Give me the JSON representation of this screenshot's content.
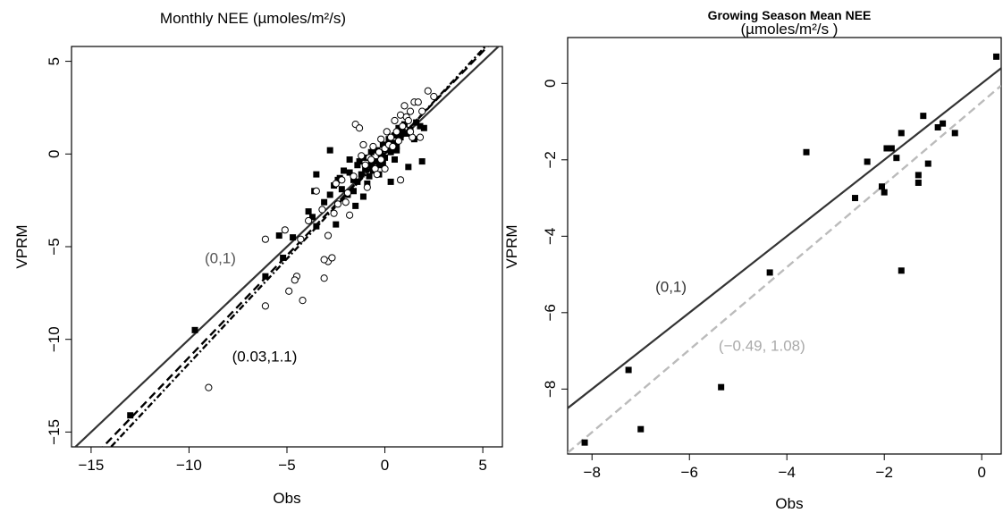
{
  "chart_data": [
    {
      "type": "scatter",
      "title": "Monthly NEE  (µmoles/m²/s)",
      "xlabel": "Obs",
      "ylabel": "VPRM",
      "xlim": [
        -16,
        6
      ],
      "ylim": [
        -15.8,
        5.8
      ],
      "xticks": [
        -15,
        -10,
        -5,
        0,
        5
      ],
      "yticks": [
        -15,
        -10,
        -5,
        0,
        5
      ],
      "xtick_labels": [
        "−15",
        "−10",
        "−5",
        "0",
        "5"
      ],
      "ytick_labels": [
        "−15",
        "−10",
        "−5",
        "0",
        "5"
      ],
      "grid": false,
      "legend": "none",
      "lines": [
        {
          "label": "(0,1)",
          "intercept": 0,
          "slope": 1,
          "style": "solid",
          "color": "#333333"
        },
        {
          "label": "(0.03,1.1)",
          "intercept": 0.03,
          "slope": 1.1,
          "style": "dashed",
          "color": "#000000"
        },
        {
          "label": "",
          "intercept": 0.0,
          "slope": 1.13,
          "style": "dotdash",
          "color": "#000000"
        }
      ],
      "annotations": [
        {
          "text": "(0,1)",
          "x": -9.2,
          "y": -5.9,
          "color": "#555555"
        },
        {
          "text": "(0.03,1.1)",
          "x": -7.8,
          "y": -11.2,
          "color": "#000000"
        }
      ],
      "series": [
        {
          "marker": "filled-square",
          "points": [
            [
              -13,
              -14.1
            ],
            [
              -9.7,
              -9.5
            ],
            [
              -6.1,
              -6.6
            ],
            [
              -5.4,
              -4.4
            ],
            [
              -5.2,
              -5.6
            ],
            [
              -4.7,
              -4.5
            ],
            [
              -3.5,
              -3.9
            ],
            [
              -3.9,
              -3.1
            ],
            [
              -3.5,
              -1.1
            ],
            [
              -3.6,
              -2
            ],
            [
              -3.1,
              -2.6
            ],
            [
              -2.8,
              0.2
            ],
            [
              -2.8,
              -2.2
            ],
            [
              -2.6,
              -1.7
            ],
            [
              -2.5,
              -3.8
            ],
            [
              -2.4,
              -1.4
            ],
            [
              -2.2,
              -1.9
            ],
            [
              -2.1,
              -0.9
            ],
            [
              -1.9,
              -2.2
            ],
            [
              -1.8,
              -0.3
            ],
            [
              -1.8,
              -1
            ],
            [
              -1.6,
              -2
            ],
            [
              -1.5,
              -2.8
            ],
            [
              -1.4,
              -1.5
            ],
            [
              -1.4,
              -0.6
            ],
            [
              -1.3,
              -0.4
            ],
            [
              -1.2,
              -1.1
            ],
            [
              -1.1,
              -2.3
            ],
            [
              -1,
              -0.8
            ],
            [
              -1,
              -0.2
            ],
            [
              -0.9,
              -1.6
            ],
            [
              -0.8,
              -1.2
            ],
            [
              -0.7,
              -0.6
            ],
            [
              -0.7,
              0.1
            ],
            [
              -0.6,
              -0.9
            ],
            [
              -0.5,
              -0.4
            ],
            [
              -0.4,
              0.2
            ],
            [
              -0.3,
              -0.6
            ],
            [
              -0.2,
              0
            ],
            [
              -0.1,
              0.5
            ],
            [
              0,
              -0.2
            ],
            [
              0.1,
              0.3
            ],
            [
              0.2,
              0.8
            ],
            [
              0.3,
              0.1
            ],
            [
              0.4,
              0.6
            ],
            [
              0.5,
              1
            ],
            [
              0.6,
              0.4
            ],
            [
              0.7,
              1.4
            ],
            [
              0.8,
              0.9
            ],
            [
              0.9,
              1.2
            ],
            [
              1,
              1.6
            ],
            [
              1.1,
              1.1
            ],
            [
              1.3,
              1.3
            ],
            [
              1.5,
              0.8
            ],
            [
              1.6,
              1.7
            ],
            [
              1.8,
              1.5
            ],
            [
              1.9,
              -0.4
            ],
            [
              2,
              1.4
            ],
            [
              0.3,
              -1.5
            ],
            [
              1.2,
              -0.7
            ],
            [
              0.5,
              -0.3
            ],
            [
              -0.3,
              -1.1
            ],
            [
              -2.3,
              -1.3
            ],
            [
              -1.6,
              -1.4
            ],
            [
              -0.1,
              -0.5
            ],
            [
              0.6,
              0.2
            ],
            [
              -3.7,
              -3.4
            ]
          ]
        },
        {
          "marker": "open-circle",
          "points": [
            [
              -9,
              -12.6
            ],
            [
              -6.1,
              -8.2
            ],
            [
              -4.2,
              -7.9
            ],
            [
              -4.9,
              -7.4
            ],
            [
              -4.5,
              -6.6
            ],
            [
              -4.6,
              -6.8
            ],
            [
              -3.1,
              -6.7
            ],
            [
              -2.9,
              -5.8
            ],
            [
              -2.7,
              -5.6
            ],
            [
              -3.1,
              -5.7
            ],
            [
              -6.1,
              -4.6
            ],
            [
              -5.1,
              -4.1
            ],
            [
              -4.3,
              -4.6
            ],
            [
              -3.9,
              -3.6
            ],
            [
              -3.5,
              -2
            ],
            [
              -3.2,
              -3
            ],
            [
              -2.9,
              -4.4
            ],
            [
              -2.6,
              -3.2
            ],
            [
              -2.4,
              -2.7
            ],
            [
              -2.2,
              -1.4
            ],
            [
              -2,
              -2.6
            ],
            [
              -1.8,
              -3.3
            ],
            [
              -1.6,
              -1.2
            ],
            [
              -1.5,
              1.6
            ],
            [
              -1.3,
              1.4
            ],
            [
              -1.2,
              -0.1
            ],
            [
              -1,
              -0.6
            ],
            [
              -0.9,
              -1.8
            ],
            [
              -0.8,
              -0.2
            ],
            [
              -0.6,
              0.4
            ],
            [
              -0.5,
              -0.8
            ],
            [
              -0.3,
              0.1
            ],
            [
              -0.2,
              0.8
            ],
            [
              0,
              0.3
            ],
            [
              0.1,
              1.2
            ],
            [
              0.2,
              0.5
            ],
            [
              0.3,
              0.9
            ],
            [
              0.5,
              1.8
            ],
            [
              0.6,
              1.2
            ],
            [
              0.7,
              0.7
            ],
            [
              0.8,
              2.1
            ],
            [
              0.9,
              1.5
            ],
            [
              1,
              2.6
            ],
            [
              1.1,
              2
            ],
            [
              1.2,
              1.8
            ],
            [
              1.3,
              2.3
            ],
            [
              1.4,
              0.9
            ],
            [
              1.5,
              2.8
            ],
            [
              1.7,
              2.8
            ],
            [
              1.9,
              2.3
            ],
            [
              2.2,
              3.4
            ],
            [
              2.5,
              3.1
            ],
            [
              0.8,
              -1.4
            ],
            [
              0,
              -0.8
            ],
            [
              -0.4,
              -1.1
            ],
            [
              -1.1,
              0.5
            ],
            [
              0.4,
              0.4
            ],
            [
              -0.7,
              -0.3
            ],
            [
              1.8,
              0.9
            ],
            [
              -2.5,
              -1.6
            ],
            [
              -1.9,
              -2.1
            ],
            [
              -0.2,
              -0.3
            ],
            [
              1.3,
              1.2
            ]
          ]
        }
      ]
    },
    {
      "type": "scatter",
      "title": "Growing Season Mean NEE",
      "subtitle": "(µmoles/m²/s )",
      "xlabel": "Obs",
      "ylabel": "VPRM",
      "xlim": [
        -8.5,
        0.4
      ],
      "ylim": [
        -9.7,
        1.2
      ],
      "xticks": [
        -8,
        -6,
        -4,
        -2,
        0
      ],
      "yticks": [
        -8,
        -6,
        -4,
        -2,
        0
      ],
      "xtick_labels": [
        "−8",
        "−6",
        "−4",
        "−2",
        "0"
      ],
      "ytick_labels": [
        "−8",
        "−6",
        "−4",
        "−2",
        "0"
      ],
      "grid": false,
      "legend": "none",
      "lines": [
        {
          "label": "(0,1)",
          "intercept": 0,
          "slope": 1,
          "style": "solid",
          "color": "#333333"
        },
        {
          "label": "(−0.49, 1.08)",
          "intercept": -0.49,
          "slope": 1.08,
          "style": "dashed",
          "color": "#bbbbbb"
        }
      ],
      "annotations": [
        {
          "text": "(0,1)",
          "x": -6.7,
          "y": -5.45,
          "color": "#333333"
        },
        {
          "text": "(−0.49, 1.08)",
          "x": -5.4,
          "y": -7.0,
          "color": "#aaaaaa"
        }
      ],
      "series": [
        {
          "marker": "filled-square",
          "points": [
            [
              0.3,
              0.7
            ],
            [
              -8.15,
              -9.4
            ],
            [
              -7.25,
              -7.5
            ],
            [
              -7,
              -9.05
            ],
            [
              -5.35,
              -7.95
            ],
            [
              -4.35,
              -4.95
            ],
            [
              -3.6,
              -1.8
            ],
            [
              -2.6,
              -3
            ],
            [
              -2.35,
              -2.05
            ],
            [
              -2.05,
              -2.7
            ],
            [
              -2,
              -2.85
            ],
            [
              -1.95,
              -1.7
            ],
            [
              -1.85,
              -1.7
            ],
            [
              -1.75,
              -1.95
            ],
            [
              -1.65,
              -1.3
            ],
            [
              -1.65,
              -4.9
            ],
            [
              -1.3,
              -2.4
            ],
            [
              -1.3,
              -2.6
            ],
            [
              -1.2,
              -0.85
            ],
            [
              -1.1,
              -2.1
            ],
            [
              -0.9,
              -1.15
            ],
            [
              -0.8,
              -1.05
            ],
            [
              -0.55,
              -1.3
            ]
          ]
        }
      ]
    }
  ]
}
